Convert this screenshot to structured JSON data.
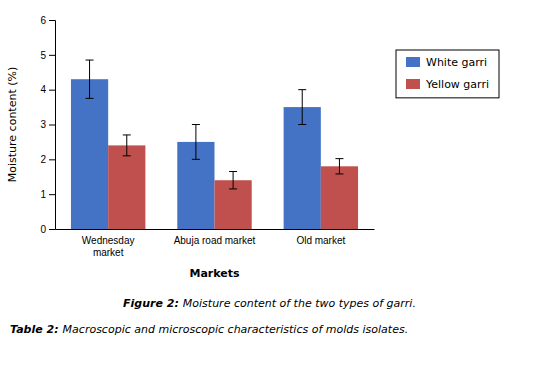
{
  "chart_data": {
    "type": "bar",
    "categories": [
      "Wednesday\nmarket",
      "Abuja road market",
      "Old market"
    ],
    "series": [
      {
        "name": "White garri",
        "color": "#4472C4",
        "values": [
          4.3,
          2.5,
          3.5
        ],
        "errors": [
          0.55,
          0.5,
          0.5
        ]
      },
      {
        "name": "Yellow garri",
        "color": "#C0504D",
        "values": [
          2.4,
          1.4,
          1.8
        ],
        "errors": [
          0.3,
          0.25,
          0.22
        ]
      }
    ],
    "ylim": [
      0,
      6
    ],
    "yticks": [
      0,
      1,
      2,
      3,
      4,
      5,
      6
    ],
    "ylabel": "Moisture content (%)",
    "xlabel": "Markets",
    "annotations": [
      "Figure 2:",
      "Moisture content of the two types of garri.",
      "Table 2:",
      "Macroscopic and microscopic characteristics of molds isolates."
    ],
    "legend": "right",
    "grid": false
  }
}
